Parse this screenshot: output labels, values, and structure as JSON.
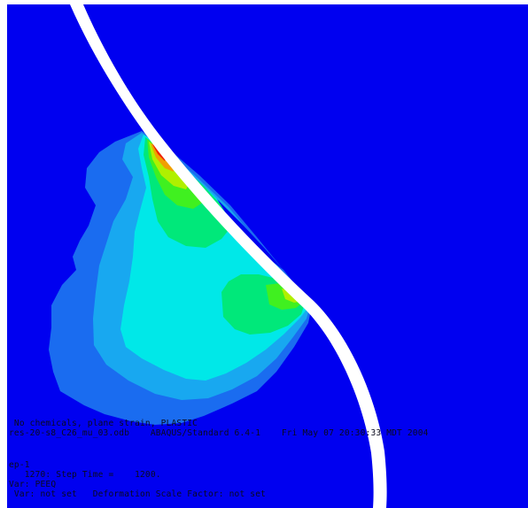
{
  "viewport": {
    "background_color": "#0000f0",
    "contour_colors": {
      "level_1": "#1a6cf0",
      "level_2": "#18a8f0",
      "level_3": "#00e8e8",
      "level_4": "#00e87a",
      "level_5": "#40f020",
      "level_6": "#b0f000",
      "level_7": "#f0a000",
      "level_8": "#f02000",
      "gap": "#ffffff"
    },
    "title_block": {
      "line_1": " No chemicals, plane strain, PLASTIC",
      "line_2": "res-20-s8_C26_mu_03.odb    ABAQUS/Standard 6.4-1    Fri May 07 20:30:33 MDT 2004"
    },
    "state_block": {
      "line_1": "ep-1",
      "line_2": "   1270: Step Time =    1200.",
      "line_3": "Var: PEEQ",
      "line_4": " Var: not set   Deformation Scale Factor: not set"
    }
  }
}
